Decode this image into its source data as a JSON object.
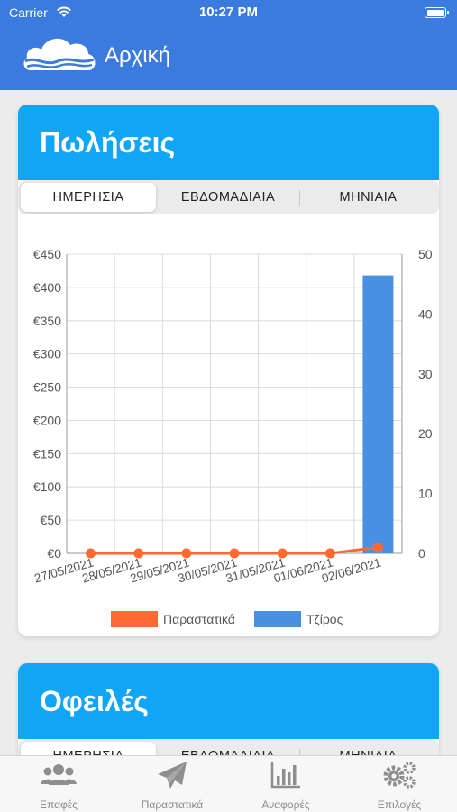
{
  "status": {
    "carrier": "Carrier",
    "time": "10:27 PM"
  },
  "header": {
    "title": "Αρχική"
  },
  "sales": {
    "title": "Πωλήσεις",
    "tabs": [
      "ΗΜΕΡΗΣΙΑ",
      "ΕΒΔΟΜΑΔΙΑΙΑ",
      "ΜΗΝΙΑΙΑ"
    ],
    "selected_tab": "ΗΜΕΡΗΣΙΑ"
  },
  "debts": {
    "title": "Οφειλές",
    "tabs": [
      "ΗΜΕΡΗΣΙΑ",
      "ΕΒΔΟΜΑΔΙΑΙΑ",
      "ΜΗΝΙΑΙΑ"
    ]
  },
  "chart_data": {
    "type": "bar",
    "categories": [
      "27/05/2021",
      "28/05/2021",
      "29/05/2021",
      "30/05/2021",
      "31/05/2021",
      "01/06/2021",
      "02/06/2021"
    ],
    "series": [
      {
        "name": "Τζίρος",
        "type": "bar",
        "axis": "left",
        "values": [
          0,
          0,
          0,
          0,
          0,
          0,
          418
        ],
        "color": "#4a90e2"
      },
      {
        "name": "Παραστατικά",
        "type": "line",
        "axis": "right",
        "values": [
          0,
          0,
          0,
          0,
          0,
          0,
          1
        ],
        "color": "#ff6a33"
      }
    ],
    "y_left": {
      "ticks": [
        "€0",
        "€50",
        "€100",
        "€150",
        "€200",
        "€250",
        "€300",
        "€350",
        "€400",
        "€450"
      ],
      "range": [
        0,
        450
      ]
    },
    "y_right": {
      "ticks": [
        "0",
        "10",
        "20",
        "30",
        "40",
        "50"
      ],
      "range": [
        0,
        50
      ]
    },
    "grid": true,
    "legend_position": "bottom"
  },
  "tabbar": {
    "items": [
      {
        "label": "Επαφές",
        "icon": "contacts-icon"
      },
      {
        "label": "Παραστατικά",
        "icon": "paper-plane-icon"
      },
      {
        "label": "Αναφορές",
        "icon": "bar-chart-icon"
      },
      {
        "label": "Επιλογές",
        "icon": "gears-icon"
      }
    ]
  },
  "colors": {
    "header": "#3b7be0",
    "card_header": "#10a6f5",
    "bar": "#4a90e2",
    "line": "#ff6a33"
  }
}
